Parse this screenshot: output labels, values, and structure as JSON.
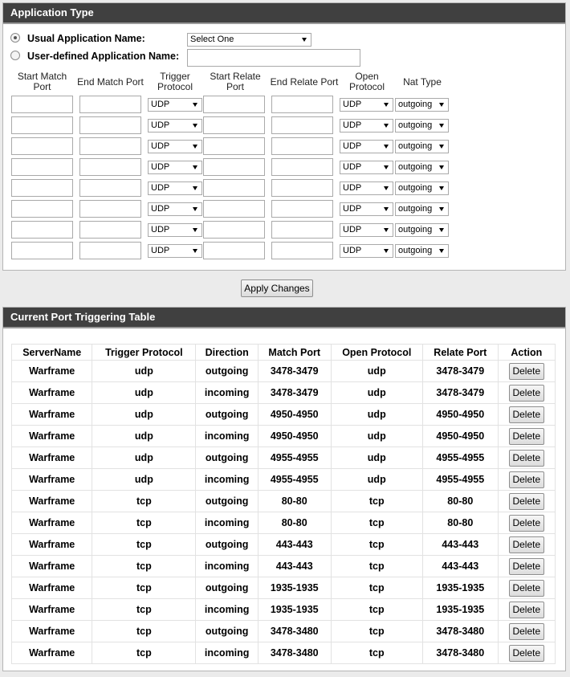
{
  "application_type": {
    "title": "Application Type",
    "usual_label": "Usual Application Name:",
    "usual_select": "Select One",
    "user_defined_label": "User-defined Application Name:",
    "columns": [
      "Start Match Port",
      "End Match Port",
      "Trigger Protocol",
      "Start Relate Port",
      "End Relate Port",
      "Open Protocol",
      "Nat Type"
    ],
    "rows": [
      [
        "UDP",
        "UDP",
        "outgoing"
      ],
      [
        "UDP",
        "UDP",
        "outgoing"
      ],
      [
        "UDP",
        "UDP",
        "outgoing"
      ],
      [
        "UDP",
        "UDP",
        "outgoing"
      ],
      [
        "UDP",
        "UDP",
        "outgoing"
      ],
      [
        "UDP",
        "UDP",
        "outgoing"
      ],
      [
        "UDP",
        "UDP",
        "outgoing"
      ],
      [
        "UDP",
        "UDP",
        "outgoing"
      ]
    ]
  },
  "apply_button": "Apply Changes",
  "port_triggering_table": {
    "title": "Current Port Triggering Table",
    "headers": [
      "ServerName",
      "Trigger Protocol",
      "Direction",
      "Match Port",
      "Open Protocol",
      "Relate Port",
      "Action"
    ],
    "rows": [
      [
        "Warframe",
        "udp",
        "outgoing",
        "3478-3479",
        "udp",
        "3478-3479",
        "Delete"
      ],
      [
        "Warframe",
        "udp",
        "incoming",
        "3478-3479",
        "udp",
        "3478-3479",
        "Delete"
      ],
      [
        "Warframe",
        "udp",
        "outgoing",
        "4950-4950",
        "udp",
        "4950-4950",
        "Delete"
      ],
      [
        "Warframe",
        "udp",
        "incoming",
        "4950-4950",
        "udp",
        "4950-4950",
        "Delete"
      ],
      [
        "Warframe",
        "udp",
        "outgoing",
        "4955-4955",
        "udp",
        "4955-4955",
        "Delete"
      ],
      [
        "Warframe",
        "udp",
        "incoming",
        "4955-4955",
        "udp",
        "4955-4955",
        "Delete"
      ],
      [
        "Warframe",
        "tcp",
        "outgoing",
        "80-80",
        "tcp",
        "80-80",
        "Delete"
      ],
      [
        "Warframe",
        "tcp",
        "incoming",
        "80-80",
        "tcp",
        "80-80",
        "Delete"
      ],
      [
        "Warframe",
        "tcp",
        "outgoing",
        "443-443",
        "tcp",
        "443-443",
        "Delete"
      ],
      [
        "Warframe",
        "tcp",
        "incoming",
        "443-443",
        "tcp",
        "443-443",
        "Delete"
      ],
      [
        "Warframe",
        "tcp",
        "outgoing",
        "1935-1935",
        "tcp",
        "1935-1935",
        "Delete"
      ],
      [
        "Warframe",
        "tcp",
        "incoming",
        "1935-1935",
        "tcp",
        "1935-1935",
        "Delete"
      ],
      [
        "Warframe",
        "tcp",
        "outgoing",
        "3478-3480",
        "tcp",
        "3478-3480",
        "Delete"
      ],
      [
        "Warframe",
        "tcp",
        "incoming",
        "3478-3480",
        "tcp",
        "3478-3480",
        "Delete"
      ]
    ]
  }
}
